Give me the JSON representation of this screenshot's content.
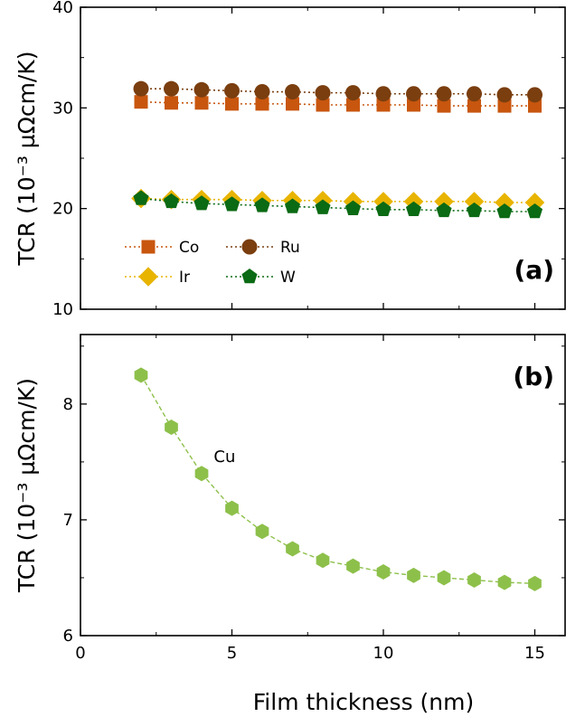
{
  "chart_data": [
    {
      "type": "scatter",
      "panel_label": "(a)",
      "ylabel": "TCR (10⁻³ µΩcm/K)",
      "xlabel": "",
      "xlim": [
        0,
        16
      ],
      "ylim": [
        10,
        40
      ],
      "xticks": [
        0,
        5,
        10,
        15
      ],
      "xtick_labels": [
        "",
        "",
        "",
        ""
      ],
      "yticks": [
        10,
        20,
        30,
        40
      ],
      "ytick_labels": [
        "10",
        "20",
        "30",
        "40"
      ],
      "grid": false,
      "legend": {
        "placement": "lower-left",
        "columns": 2
      },
      "x": [
        2,
        3,
        4,
        5,
        6,
        7,
        8,
        9,
        10,
        11,
        12,
        13,
        14,
        15
      ],
      "series": [
        {
          "name": "Co",
          "marker": "square",
          "line": "dotted",
          "color": "#c8560e",
          "values": [
            30.6,
            30.5,
            30.5,
            30.4,
            30.4,
            30.4,
            30.3,
            30.3,
            30.3,
            30.3,
            30.2,
            30.2,
            30.2,
            30.2
          ]
        },
        {
          "name": "Ru",
          "marker": "circle",
          "line": "dotted",
          "color": "#7a3e0f",
          "values": [
            31.9,
            31.9,
            31.8,
            31.7,
            31.6,
            31.6,
            31.5,
            31.5,
            31.4,
            31.4,
            31.4,
            31.4,
            31.3,
            31.3
          ]
        },
        {
          "name": "Ir",
          "marker": "diamond",
          "line": "dotted",
          "color": "#e8b400",
          "values": [
            21.0,
            20.9,
            20.9,
            20.9,
            20.8,
            20.8,
            20.8,
            20.7,
            20.7,
            20.7,
            20.7,
            20.7,
            20.6,
            20.6
          ]
        },
        {
          "name": "W",
          "marker": "pentagon",
          "line": "dotted",
          "color": "#0b6a14",
          "values": [
            21.0,
            20.7,
            20.5,
            20.4,
            20.3,
            20.2,
            20.1,
            20.0,
            19.9,
            19.9,
            19.8,
            19.8,
            19.7,
            19.7
          ]
        }
      ]
    },
    {
      "type": "line",
      "panel_label": "(b)",
      "ylabel": "TCR (10⁻³ µΩcm/K)",
      "xlabel": "Film thickness (nm)",
      "xlim": [
        0,
        16
      ],
      "ylim": [
        6,
        8.6
      ],
      "xticks": [
        0,
        5,
        10,
        15
      ],
      "xtick_labels": [
        "0",
        "5",
        "10",
        "15"
      ],
      "yticks": [
        6,
        7,
        8
      ],
      "ytick_labels": [
        "6",
        "7",
        "8"
      ],
      "grid": false,
      "x": [
        2,
        3,
        4,
        5,
        6,
        7,
        8,
        9,
        10,
        11,
        12,
        13,
        14,
        15
      ],
      "series": [
        {
          "name": "Cu",
          "marker": "hexagon",
          "line": "dashed-solid",
          "color": "#8dc04a",
          "values": [
            8.25,
            7.8,
            7.4,
            7.1,
            6.9,
            6.75,
            6.65,
            6.6,
            6.55,
            6.52,
            6.5,
            6.48,
            6.46,
            6.45
          ]
        }
      ]
    }
  ]
}
